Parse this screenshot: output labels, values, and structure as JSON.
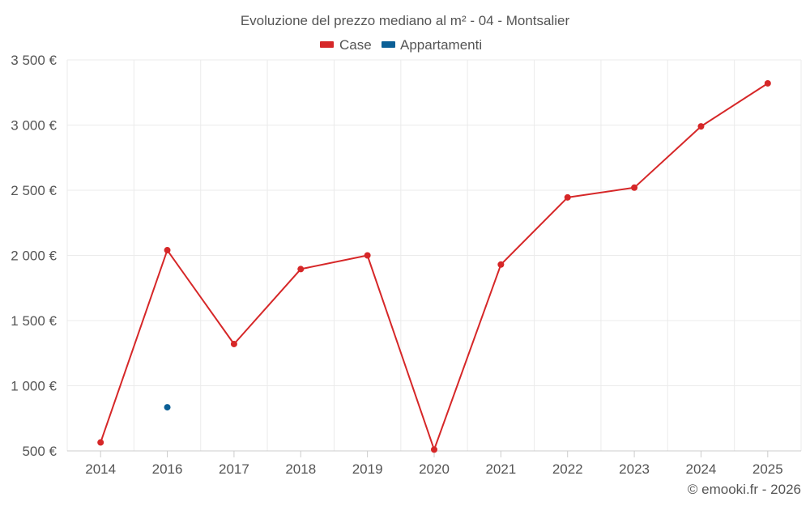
{
  "chart_data": {
    "type": "line",
    "title": "Evoluzione del prezzo mediano al m² - 04 - Montsalier",
    "categories": [
      "2014",
      "2016",
      "2017",
      "2018",
      "2019",
      "2020",
      "2021",
      "2022",
      "2023",
      "2024",
      "2025"
    ],
    "series": [
      {
        "name": "Case",
        "color": "#d62728",
        "values": [
          565,
          2040,
          1320,
          1895,
          2000,
          510,
          1930,
          2445,
          2520,
          2990,
          3320
        ]
      },
      {
        "name": "Appartamenti",
        "color": "#0b5f96",
        "values": [
          null,
          835,
          null,
          null,
          null,
          null,
          null,
          null,
          null,
          null,
          null
        ]
      }
    ],
    "ylim": [
      500,
      3500
    ],
    "yticks": [
      500,
      1000,
      1500,
      2000,
      2500,
      3000,
      3500
    ],
    "ytick_labels": [
      "500 €",
      "1 000 €",
      "1 500 €",
      "2 000 €",
      "2 500 €",
      "3 000 €",
      "3 500 €"
    ],
    "legend_position": "top-center",
    "grid": true,
    "xlabel": "",
    "ylabel": ""
  },
  "credit": "© emooki.fr - 2026",
  "colors": {
    "grid": "#ebebeb",
    "axis": "#cccccc",
    "text": "#555555"
  }
}
